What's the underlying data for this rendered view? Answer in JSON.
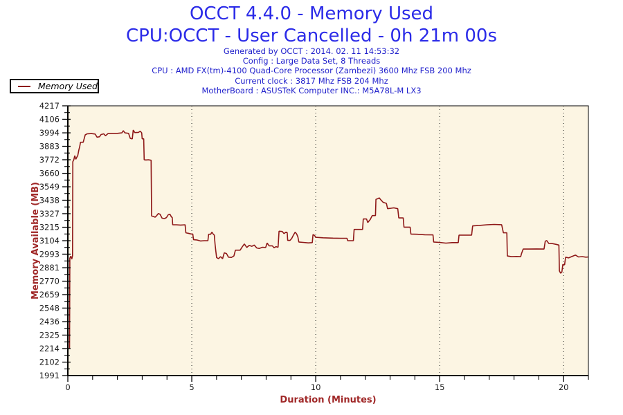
{
  "header": {
    "title_line1": "OCCT 4.4.0 - Memory Used",
    "title_line2": "CPU:OCCT - User Cancelled - 0h 21m 00s",
    "info_lines": [
      "Generated by OCCT : 2014. 02. 11 14:53:32",
      "Config : Large Data Set, 8 Threads",
      "CPU : AMD FX(tm)-4100 Quad-Core Processor (Zambezi) 3600 Mhz FSB 200 Mhz",
      "Current clock : 3817 Mhz FSB 204 Mhz",
      "MotherBoard : ASUSTeK Computer INC.: M5A78L-M LX3"
    ]
  },
  "legend": {
    "label": "Memory Used"
  },
  "colors": {
    "title_blue": "#2B2BE8",
    "info_blue": "#2222CC",
    "line_dark_red": "#8E1818",
    "axis_title_red": "#A02828",
    "plot_background": "#FCF5E3",
    "tick_label": "#1a1a1a",
    "axis_black": "#000000"
  },
  "chart_data": {
    "type": "line",
    "title": "OCCT 4.4.0 - Memory Used",
    "subtitle": "CPU:OCCT - User Cancelled - 0h 21m 00s",
    "xlabel": "Duration (Minutes)",
    "ylabel": "Memory Available (MB)",
    "xlim": [
      0,
      21
    ],
    "ylim": [
      1991,
      4217
    ],
    "x_major_ticks": [
      0,
      5,
      10,
      15,
      20
    ],
    "x_minor_tick_interval": 1,
    "y_ticks": [
      1991,
      2102,
      2214,
      2325,
      2436,
      2548,
      2659,
      2770,
      2881,
      2993,
      3104,
      3215,
      3327,
      3438,
      3549,
      3660,
      3772,
      3883,
      3994,
      4106,
      4217
    ],
    "grid": {
      "vertical_at": [
        5,
        10,
        15,
        20
      ],
      "style": "dotted",
      "horizontal": false
    },
    "legend_position": "top-left-outside",
    "series": [
      {
        "name": "Memory Used",
        "color": "#8E1818",
        "points": [
          [
            0.05,
            2215
          ],
          [
            0.07,
            2215
          ],
          [
            0.08,
            2960
          ],
          [
            0.12,
            2976
          ],
          [
            0.16,
            2952
          ],
          [
            0.19,
            2980
          ],
          [
            0.2,
            3756
          ],
          [
            0.24,
            3772
          ],
          [
            0.28,
            3806
          ],
          [
            0.32,
            3776
          ],
          [
            0.36,
            3792
          ],
          [
            0.4,
            3806
          ],
          [
            0.44,
            3850
          ],
          [
            0.48,
            3882
          ],
          [
            0.51,
            3916
          ],
          [
            0.62,
            3916
          ],
          [
            0.66,
            3946
          ],
          [
            0.7,
            3977
          ],
          [
            0.78,
            3986
          ],
          [
            0.95,
            3988
          ],
          [
            1.1,
            3984
          ],
          [
            1.18,
            3958
          ],
          [
            1.28,
            3962
          ],
          [
            1.34,
            3980
          ],
          [
            1.45,
            3986
          ],
          [
            1.52,
            3970
          ],
          [
            1.62,
            3988
          ],
          [
            1.8,
            3990
          ],
          [
            2.0,
            3990
          ],
          [
            2.18,
            3994
          ],
          [
            2.24,
            4012
          ],
          [
            2.3,
            3994
          ],
          [
            2.45,
            3990
          ],
          [
            2.52,
            3948
          ],
          [
            2.6,
            3944
          ],
          [
            2.64,
            4017
          ],
          [
            2.7,
            3996
          ],
          [
            2.85,
            3998
          ],
          [
            2.92,
            4008
          ],
          [
            2.98,
            3994
          ],
          [
            3.0,
            3945
          ],
          [
            3.06,
            3945
          ],
          [
            3.08,
            3772
          ],
          [
            3.15,
            3770
          ],
          [
            3.25,
            3772
          ],
          [
            3.36,
            3768
          ],
          [
            3.38,
            3308
          ],
          [
            3.45,
            3305
          ],
          [
            3.52,
            3298
          ],
          [
            3.58,
            3310
          ],
          [
            3.65,
            3328
          ],
          [
            3.72,
            3322
          ],
          [
            3.8,
            3290
          ],
          [
            3.9,
            3286
          ],
          [
            3.98,
            3295
          ],
          [
            4.05,
            3318
          ],
          [
            4.12,
            3322
          ],
          [
            4.18,
            3300
          ],
          [
            4.21,
            3296
          ],
          [
            4.23,
            3235
          ],
          [
            4.38,
            3235
          ],
          [
            4.55,
            3233
          ],
          [
            4.73,
            3235
          ],
          [
            4.76,
            3169
          ],
          [
            4.86,
            3165
          ],
          [
            4.96,
            3160
          ],
          [
            5.04,
            3159
          ],
          [
            5.07,
            3112
          ],
          [
            5.2,
            3110
          ],
          [
            5.35,
            3102
          ],
          [
            5.5,
            3104
          ],
          [
            5.65,
            3104
          ],
          [
            5.68,
            3157
          ],
          [
            5.76,
            3157
          ],
          [
            5.81,
            3175
          ],
          [
            5.86,
            3160
          ],
          [
            5.91,
            3150
          ],
          [
            5.94,
            3074
          ],
          [
            5.97,
            3017
          ],
          [
            6.0,
            2965
          ],
          [
            6.08,
            2956
          ],
          [
            6.16,
            2972
          ],
          [
            6.24,
            2955
          ],
          [
            6.31,
            3004
          ],
          [
            6.4,
            2998
          ],
          [
            6.48,
            2968
          ],
          [
            6.6,
            2966
          ],
          [
            6.7,
            2978
          ],
          [
            6.76,
            3026
          ],
          [
            6.95,
            3026
          ],
          [
            7.05,
            3058
          ],
          [
            7.12,
            3077
          ],
          [
            7.22,
            3048
          ],
          [
            7.32,
            3065
          ],
          [
            7.42,
            3058
          ],
          [
            7.52,
            3068
          ],
          [
            7.62,
            3044
          ],
          [
            7.72,
            3040
          ],
          [
            7.85,
            3050
          ],
          [
            7.98,
            3048
          ],
          [
            8.04,
            3085
          ],
          [
            8.12,
            3062
          ],
          [
            8.25,
            3062
          ],
          [
            8.32,
            3046
          ],
          [
            8.4,
            3055
          ],
          [
            8.48,
            3050
          ],
          [
            8.52,
            3182
          ],
          [
            8.65,
            3180
          ],
          [
            8.72,
            3162
          ],
          [
            8.8,
            3175
          ],
          [
            8.85,
            3170
          ],
          [
            8.87,
            3106
          ],
          [
            8.96,
            3106
          ],
          [
            9.03,
            3122
          ],
          [
            9.1,
            3150
          ],
          [
            9.17,
            3175
          ],
          [
            9.23,
            3160
          ],
          [
            9.28,
            3136
          ],
          [
            9.32,
            3093
          ],
          [
            9.5,
            3090
          ],
          [
            9.7,
            3086
          ],
          [
            9.86,
            3088
          ],
          [
            9.89,
            3155
          ],
          [
            9.95,
            3148
          ],
          [
            10.0,
            3132
          ],
          [
            10.3,
            3128
          ],
          [
            10.7,
            3125
          ],
          [
            11.0,
            3124
          ],
          [
            11.26,
            3124
          ],
          [
            11.29,
            3104
          ],
          [
            11.52,
            3104
          ],
          [
            11.55,
            3197
          ],
          [
            11.89,
            3197
          ],
          [
            11.92,
            3283
          ],
          [
            12.05,
            3283
          ],
          [
            12.1,
            3254
          ],
          [
            12.2,
            3280
          ],
          [
            12.28,
            3311
          ],
          [
            12.41,
            3311
          ],
          [
            12.43,
            3445
          ],
          [
            12.52,
            3452
          ],
          [
            12.56,
            3458
          ],
          [
            12.63,
            3440
          ],
          [
            12.72,
            3421
          ],
          [
            12.85,
            3412
          ],
          [
            12.9,
            3368
          ],
          [
            13.05,
            3372
          ],
          [
            13.15,
            3375
          ],
          [
            13.31,
            3368
          ],
          [
            13.35,
            3292
          ],
          [
            13.53,
            3292
          ],
          [
            13.56,
            3216
          ],
          [
            13.81,
            3216
          ],
          [
            13.84,
            3159
          ],
          [
            14.1,
            3157
          ],
          [
            14.4,
            3153
          ],
          [
            14.73,
            3152
          ],
          [
            14.76,
            3093
          ],
          [
            15.0,
            3090
          ],
          [
            15.25,
            3084
          ],
          [
            15.5,
            3088
          ],
          [
            15.75,
            3088
          ],
          [
            15.78,
            3150
          ],
          [
            16.0,
            3150
          ],
          [
            16.29,
            3150
          ],
          [
            16.33,
            3226
          ],
          [
            16.6,
            3230
          ],
          [
            16.9,
            3235
          ],
          [
            17.2,
            3238
          ],
          [
            17.5,
            3236
          ],
          [
            17.57,
            3169
          ],
          [
            17.71,
            3169
          ],
          [
            17.73,
            2978
          ],
          [
            17.9,
            2972
          ],
          [
            18.1,
            2974
          ],
          [
            18.27,
            2972
          ],
          [
            18.3,
            2996
          ],
          [
            18.37,
            3035
          ],
          [
            18.6,
            3035
          ],
          [
            18.9,
            3036
          ],
          [
            19.21,
            3035
          ],
          [
            19.26,
            3100
          ],
          [
            19.32,
            3105
          ],
          [
            19.4,
            3082
          ],
          [
            19.55,
            3080
          ],
          [
            19.7,
            3074
          ],
          [
            19.81,
            3068
          ],
          [
            19.83,
            2855
          ],
          [
            19.88,
            2836
          ],
          [
            19.93,
            2846
          ],
          [
            19.97,
            2908
          ],
          [
            20.04,
            2905
          ],
          [
            20.08,
            2968
          ],
          [
            20.2,
            2962
          ],
          [
            20.35,
            2975
          ],
          [
            20.48,
            2985
          ],
          [
            20.6,
            2970
          ],
          [
            20.75,
            2973
          ],
          [
            20.9,
            2968
          ],
          [
            21.0,
            2970
          ]
        ]
      }
    ]
  }
}
